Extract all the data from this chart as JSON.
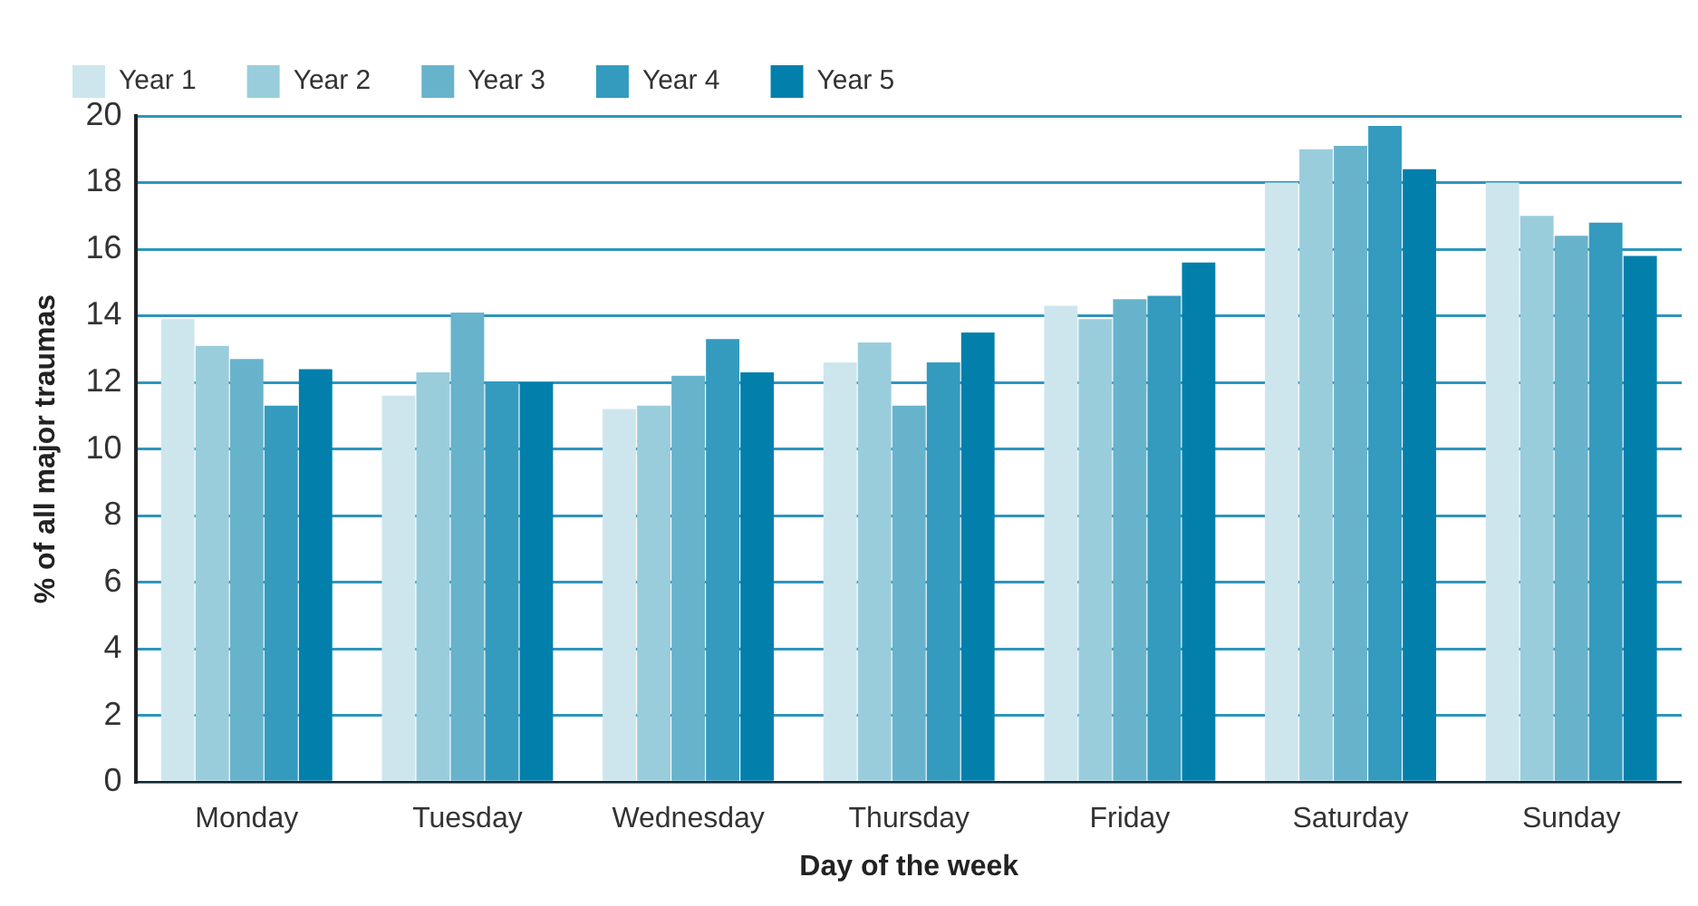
{
  "chart_data": {
    "type": "bar",
    "xlabel": "Day of the week",
    "ylabel": "% of all major traumas",
    "categories": [
      "Monday",
      "Tuesday",
      "Wednesday",
      "Thursday",
      "Friday",
      "Saturday",
      "Sunday"
    ],
    "series": [
      {
        "name": "Year 1",
        "color": "#cde6ed",
        "values": [
          13.9,
          11.6,
          11.2,
          12.6,
          14.3,
          18.0,
          18.0
        ]
      },
      {
        "name": "Year 2",
        "color": "#9acddc",
        "values": [
          13.1,
          12.3,
          11.3,
          13.2,
          13.9,
          19.0,
          17.0
        ]
      },
      {
        "name": "Year 3",
        "color": "#68b3cc",
        "values": [
          12.7,
          14.1,
          12.2,
          11.3,
          14.5,
          19.1,
          16.4
        ]
      },
      {
        "name": "Year 4",
        "color": "#349bbe",
        "values": [
          11.3,
          12.0,
          13.3,
          12.6,
          14.6,
          19.7,
          16.8
        ]
      },
      {
        "name": "Year 5",
        "color": "#0280ab",
        "values": [
          12.4,
          12.0,
          12.3,
          13.5,
          15.6,
          18.4,
          15.8
        ]
      }
    ],
    "ylim": [
      0,
      20
    ],
    "yticks": [
      0,
      2,
      4,
      6,
      8,
      10,
      12,
      14,
      16,
      18,
      20
    ],
    "grid": "y",
    "legend": "top left"
  }
}
